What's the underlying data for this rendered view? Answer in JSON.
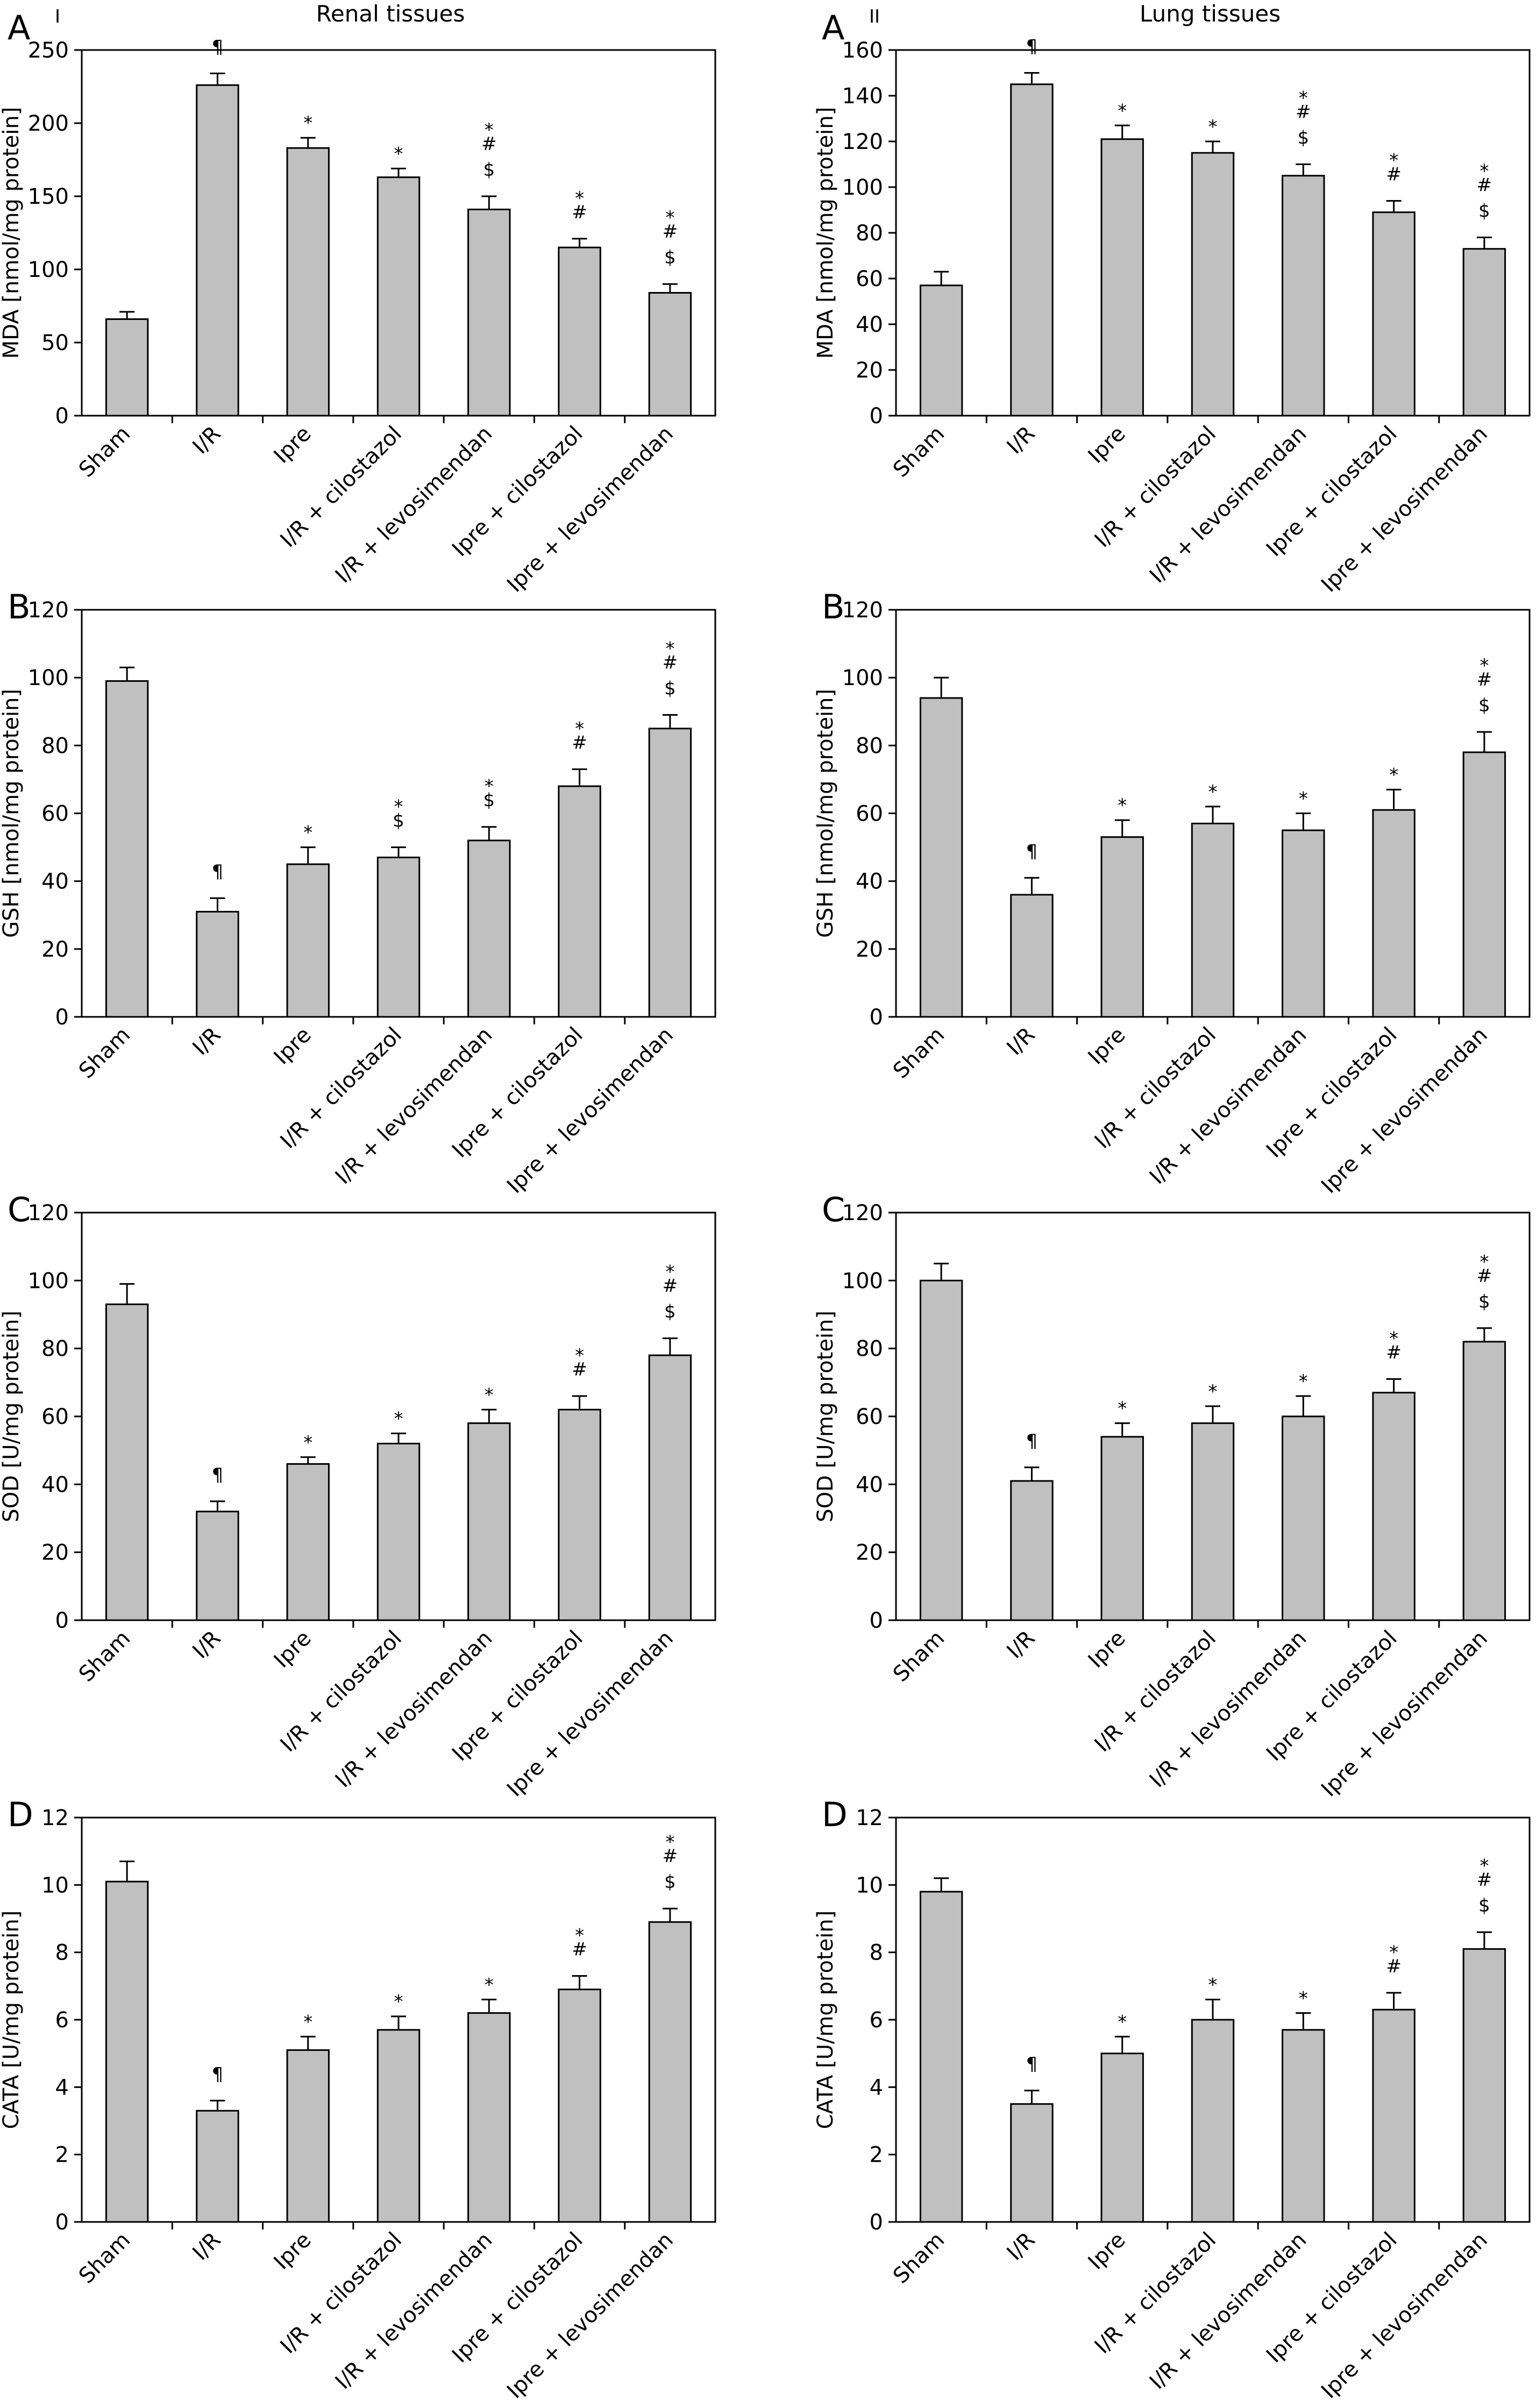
{
  "sections": [
    {
      "roman": "I",
      "title": "Renal tissues"
    },
    {
      "roman": "II",
      "title": "Lung tissues"
    }
  ],
  "chart_data": [
    {
      "type": "bar",
      "panel": "A",
      "tissue": "Renal tissues",
      "ylabel": "MDA [nmol/mg protein]",
      "ylim": [
        0,
        250
      ],
      "yticks": [
        0,
        50,
        100,
        150,
        200,
        250
      ],
      "categories": [
        "Sham",
        "I/R",
        "Ipre",
        "I/R + cilostazol",
        "I/R + levosimendan",
        "Ipre + cilostazol",
        "Ipre + levosimendan"
      ],
      "values": [
        66,
        226,
        183,
        163,
        141,
        115,
        84
      ],
      "errors": [
        5,
        8,
        7,
        6,
        9,
        6,
        6
      ],
      "annotations": [
        [],
        [
          "¶"
        ],
        [
          "*"
        ],
        [
          "*"
        ],
        [
          "*",
          "#",
          "$"
        ],
        [
          "*",
          "#"
        ],
        [
          "*",
          "#",
          "$"
        ]
      ]
    },
    {
      "type": "bar",
      "panel": "A",
      "tissue": "Lung tissues",
      "ylabel": "MDA [nmol/mg protein]",
      "ylim": [
        0,
        160
      ],
      "yticks": [
        0,
        20,
        40,
        60,
        80,
        100,
        120,
        140,
        160
      ],
      "categories": [
        "Sham",
        "I/R",
        "Ipre",
        "I/R + cilostazol",
        "I/R + levosimendan",
        "Ipre + cilostazol",
        "Ipre + levosimendan"
      ],
      "values": [
        57,
        145,
        121,
        115,
        105,
        89,
        73
      ],
      "errors": [
        6,
        5,
        6,
        5,
        5,
        5,
        5
      ],
      "annotations": [
        [],
        [
          "¶"
        ],
        [
          "*"
        ],
        [
          "*"
        ],
        [
          "*",
          "#",
          "$"
        ],
        [
          "*",
          "#"
        ],
        [
          "*",
          "#",
          "$"
        ]
      ]
    },
    {
      "type": "bar",
      "panel": "B",
      "tissue": "Renal tissues",
      "ylabel": "GSH [nmol/mg protein]",
      "ylim": [
        0,
        120
      ],
      "yticks": [
        0,
        20,
        40,
        60,
        80,
        100,
        120
      ],
      "categories": [
        "Sham",
        "I/R",
        "Ipre",
        "I/R + cilostazol",
        "I/R + levosimendan",
        "Ipre + cilostazol",
        "Ipre + levosimendan"
      ],
      "values": [
        99,
        31,
        45,
        47,
        52,
        68,
        85
      ],
      "errors": [
        4,
        4,
        5,
        3,
        4,
        5,
        4
      ],
      "annotations": [
        [],
        [
          "¶"
        ],
        [
          "*"
        ],
        [
          "*",
          "$"
        ],
        [
          "*",
          "$"
        ],
        [
          "*",
          "#"
        ],
        [
          "*",
          "#",
          "$"
        ]
      ]
    },
    {
      "type": "bar",
      "panel": "B",
      "tissue": "Lung tissues",
      "ylabel": "GSH [nmol/mg protein]",
      "ylim": [
        0,
        120
      ],
      "yticks": [
        0,
        20,
        40,
        60,
        80,
        100,
        120
      ],
      "categories": [
        "Sham",
        "I/R",
        "Ipre",
        "I/R + cilostazol",
        "I/R + levosimendan",
        "Ipre + cilostazol",
        "Ipre + levosimendan"
      ],
      "values": [
        94,
        36,
        53,
        57,
        55,
        61,
        78
      ],
      "errors": [
        6,
        5,
        5,
        5,
        5,
        6,
        6
      ],
      "annotations": [
        [],
        [
          "¶"
        ],
        [
          "*"
        ],
        [
          "*"
        ],
        [
          "*"
        ],
        [
          "*"
        ],
        [
          "*",
          "#",
          "$"
        ]
      ]
    },
    {
      "type": "bar",
      "panel": "C",
      "tissue": "Renal tissues",
      "ylabel": "SOD [U/mg protein]",
      "ylim": [
        0,
        120
      ],
      "yticks": [
        0,
        20,
        40,
        60,
        80,
        100,
        120
      ],
      "categories": [
        "Sham",
        "I/R",
        "Ipre",
        "I/R + cilostazol",
        "I/R + levosimendan",
        "Ipre + cilostazol",
        "Ipre + levosimendan"
      ],
      "values": [
        93,
        32,
        46,
        52,
        58,
        62,
        78
      ],
      "errors": [
        6,
        3,
        2,
        3,
        4,
        4,
        5
      ],
      "annotations": [
        [],
        [
          "¶"
        ],
        [
          "*"
        ],
        [
          "*"
        ],
        [
          "*"
        ],
        [
          "*",
          "#"
        ],
        [
          "*",
          "#",
          "$"
        ]
      ]
    },
    {
      "type": "bar",
      "panel": "C",
      "tissue": "Lung tissues",
      "ylabel": "SOD [U/mg protein]",
      "ylim": [
        0,
        120
      ],
      "yticks": [
        0,
        20,
        40,
        60,
        80,
        100,
        120
      ],
      "categories": [
        "Sham",
        "I/R",
        "Ipre",
        "I/R + cilostazol",
        "I/R + levosimendan",
        "Ipre + cilostazol",
        "Ipre + levosimendan"
      ],
      "values": [
        100,
        41,
        54,
        58,
        60,
        67,
        82
      ],
      "errors": [
        5,
        4,
        4,
        5,
        6,
        4,
        4
      ],
      "annotations": [
        [],
        [
          "¶"
        ],
        [
          "*"
        ],
        [
          "*"
        ],
        [
          "*"
        ],
        [
          "*",
          "#"
        ],
        [
          "*",
          "#",
          "$"
        ]
      ]
    },
    {
      "type": "bar",
      "panel": "D",
      "tissue": "Renal tissues",
      "ylabel": "CATA [U/mg protein]",
      "ylim": [
        0,
        12
      ],
      "yticks": [
        0,
        2,
        4,
        6,
        8,
        10,
        12
      ],
      "categories": [
        "Sham",
        "I/R",
        "Ipre",
        "I/R + cilostazol",
        "I/R + levosimendan",
        "Ipre + cilostazol",
        "Ipre + levosimendan"
      ],
      "values": [
        10.1,
        3.3,
        5.1,
        5.7,
        6.2,
        6.9,
        8.9
      ],
      "errors": [
        0.6,
        0.3,
        0.4,
        0.4,
        0.4,
        0.4,
        0.4
      ],
      "annotations": [
        [],
        [
          "¶"
        ],
        [
          "*"
        ],
        [
          "*"
        ],
        [
          "*"
        ],
        [
          "*",
          "#"
        ],
        [
          "*",
          "#",
          "$"
        ]
      ]
    },
    {
      "type": "bar",
      "panel": "D",
      "tissue": "Lung tissues",
      "ylabel": "CATA [U/mg protein]",
      "ylim": [
        0,
        12
      ],
      "yticks": [
        0,
        2,
        4,
        6,
        8,
        10,
        12
      ],
      "categories": [
        "Sham",
        "I/R",
        "Ipre",
        "I/R + cilostazol",
        "I/R + levosimendan",
        "Ipre + cilostazol",
        "Ipre + levosimendan"
      ],
      "values": [
        9.8,
        3.5,
        5.0,
        6.0,
        5.7,
        6.3,
        8.1
      ],
      "errors": [
        0.4,
        0.4,
        0.5,
        0.6,
        0.5,
        0.5,
        0.5
      ],
      "annotations": [
        [],
        [
          "¶"
        ],
        [
          "*"
        ],
        [
          "*"
        ],
        [
          "*"
        ],
        [
          "*",
          "#"
        ],
        [
          "*",
          "#",
          "$"
        ]
      ]
    }
  ]
}
